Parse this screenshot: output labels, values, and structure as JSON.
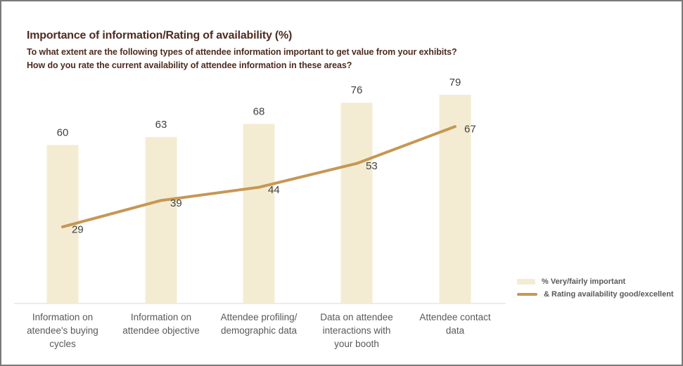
{
  "header": {
    "title": "Importance of information/Rating of availability (%)",
    "subtitle_lines": [
      "To what extent are the following types of attendee information important to get value from your exhibits?",
      "How do you rate the current availability of attendee information in these areas?"
    ]
  },
  "colors": {
    "bar_fill": "#f4ecd2",
    "line_stroke": "#c69754",
    "title_text": "#4e2c20",
    "value_label": "#404040",
    "category_label": "#595959",
    "axis_line": "#d9d9d9",
    "frame_border": "#7a7a7a"
  },
  "legend": {
    "items": [
      {
        "label": "% Very/fairly important",
        "swatch": "bar"
      },
      {
        "label": "& Rating availability good/excellent",
        "swatch": "line"
      }
    ]
  },
  "chart_data": {
    "type": "combo",
    "title": "Importance of information/Rating of availability (%)",
    "subtitle": "To what extent are the following types of attendee information important to get value from your exhibits? How do you rate the current availability of attendee information in these areas?",
    "categories": [
      "Information on atendee's buying cycles",
      "Information on attendee objective",
      "Attendee profiling/ demographic data",
      "Data on attendee interactions with your booth",
      "Attendee contact data"
    ],
    "category_lines": [
      [
        "Information on",
        "atendee's buying",
        "cycles"
      ],
      [
        "Information on",
        "attendee objective"
      ],
      [
        "Attendee profiling/",
        "demographic data"
      ],
      [
        "Data on attendee",
        "interactions with",
        "your booth"
      ],
      [
        "Attendee contact",
        "data"
      ]
    ],
    "series": [
      {
        "name": "% Very/fairly important",
        "type": "bar",
        "color": "#f4ecd2",
        "values": [
          60,
          63,
          68,
          76,
          79
        ]
      },
      {
        "name": "& Rating availability good/excellent",
        "type": "line",
        "color": "#c69754",
        "values": [
          29,
          39,
          44,
          53,
          67
        ]
      }
    ],
    "ylim": [
      0,
      100
    ],
    "grid": false,
    "data_labels": true,
    "legend_position": "bottom-right"
  }
}
